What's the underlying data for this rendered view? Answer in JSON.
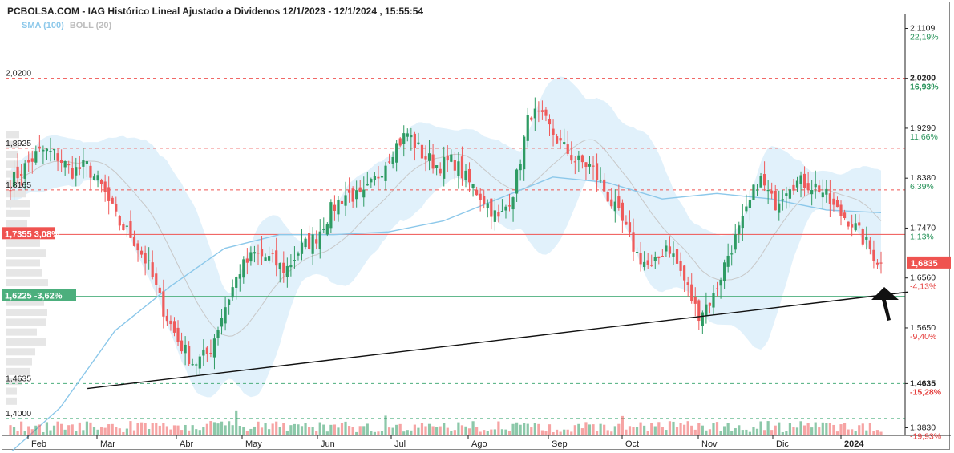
{
  "header": {
    "title": "PCBOLSA.COM - IAG Histórico Lineal Ajustado a Dividenos 12/1/2023 - 12/1/2024 , 15:55:54",
    "legend_sma": "SMA (100)",
    "legend_boll": "BOLL (20)"
  },
  "colors": {
    "up": "#2e9b63",
    "down": "#ef5a5a",
    "sma": "#8cc8ea",
    "band": "#d7ecfa",
    "resistance": "#ef5350",
    "support": "#4caf7d"
  },
  "chart_data": {
    "type": "candlestick",
    "title": "PCBOLSA.COM - IAG Histórico Lineal Ajustado a Dividenos 12/1/2023 - 12/1/2024 , 15:55:54",
    "ylim": [
      1.372,
      2.135
    ],
    "x_ticks": [
      "Feb",
      "Mar",
      "Abr",
      "May",
      "Jun",
      "Jul",
      "Ago",
      "Sep",
      "Oct",
      "Nov",
      "Dic",
      "2024"
    ],
    "right_axis": [
      {
        "price": "2,1109",
        "pct": "22,19%",
        "sign": "pos"
      },
      {
        "price": "2,0200",
        "pct": "16,93%",
        "sign": "pos",
        "bold": true
      },
      {
        "price": "1,9290",
        "pct": "11,66%",
        "sign": "pos"
      },
      {
        "price": "1,8380",
        "pct": "6,39%",
        "sign": "pos"
      },
      {
        "price": "1,7470",
        "pct": "1,13%",
        "sign": "pos"
      },
      {
        "price": "1,6560",
        "pct": "-4,13%",
        "sign": "neg"
      },
      {
        "price": "1,5650",
        "pct": "-9,40%",
        "sign": "neg"
      },
      {
        "price": "1,4635",
        "pct": "-15,28%",
        "sign": "neg",
        "bold": true
      },
      {
        "price": "1,3830",
        "pct": "-19,93%",
        "sign": "neg"
      }
    ],
    "levels": [
      {
        "label": "2,0200",
        "value": 2.02,
        "style": "red-dashed"
      },
      {
        "label": "1,8925",
        "value": 1.8925,
        "style": "red-dashed"
      },
      {
        "label": "1,8165",
        "value": 1.8165,
        "style": "red-dashed"
      },
      {
        "label": "1,7355  3,08%",
        "value": 1.7355,
        "style": "red-solid"
      },
      {
        "label": "1,6225  -3,62%",
        "value": 1.6225,
        "style": "green-solid"
      },
      {
        "label": "1,4635",
        "value": 1.4635,
        "style": "green-dashed"
      },
      {
        "label": "1,4000",
        "value": 1.4,
        "style": "green-dashed"
      }
    ],
    "current_price": {
      "label": "1,6835",
      "value": 1.6835
    },
    "trendline": {
      "from": [
        "2023-02-15",
        1.4545
      ],
      "to": [
        "2024-01-12",
        1.6245
      ]
    },
    "series": [
      {
        "name": "SMA (100)",
        "values": [
          1.33,
          1.42,
          1.56,
          1.64,
          1.71,
          1.735,
          1.735,
          1.74,
          1.76,
          1.8,
          1.84,
          1.83,
          1.8,
          1.81,
          1.8,
          1.78,
          1.775
        ]
      }
    ],
    "close_path": [
      1.83,
      1.86,
      1.89,
      1.88,
      1.85,
      1.86,
      1.82,
      1.76,
      1.73,
      1.68,
      1.6,
      1.54,
      1.5,
      1.52,
      1.6,
      1.67,
      1.7,
      1.69,
      1.67,
      1.71,
      1.73,
      1.78,
      1.81,
      1.8,
      1.84,
      1.89,
      1.92,
      1.88,
      1.86,
      1.87,
      1.83,
      1.8,
      1.76,
      1.82,
      1.96,
      1.94,
      1.9,
      1.87,
      1.86,
      1.81,
      1.76,
      1.7,
      1.67,
      1.72,
      1.66,
      1.59,
      1.62,
      1.7,
      1.76,
      1.84,
      1.79,
      1.83,
      1.83,
      1.82,
      1.78,
      1.76,
      1.72,
      1.68
    ]
  },
  "annotations": {
    "arrow": "pointer-arrow"
  }
}
